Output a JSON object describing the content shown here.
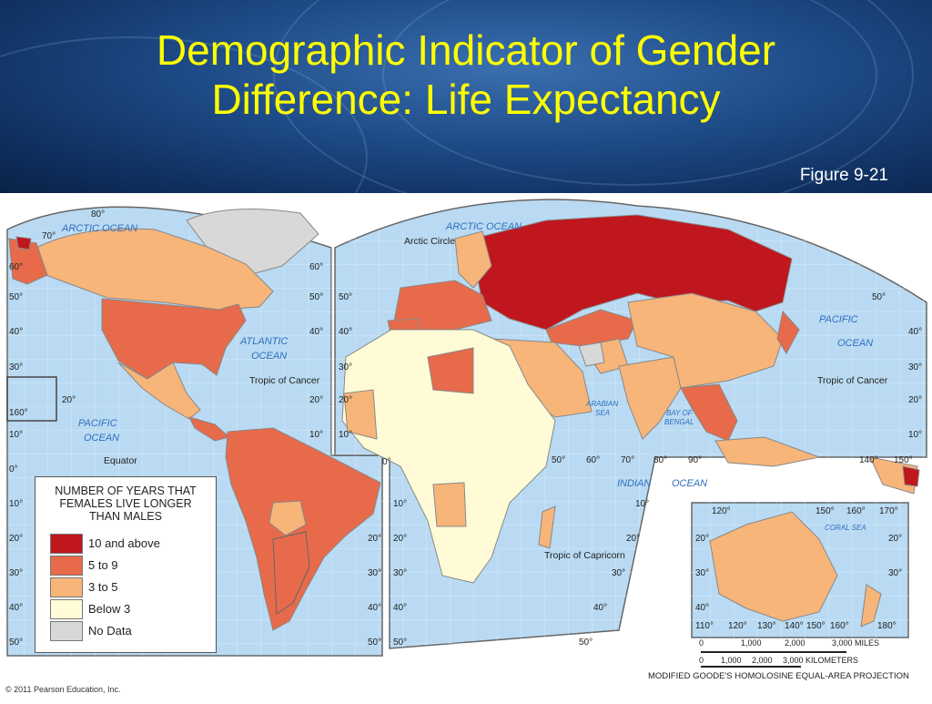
{
  "title": {
    "line1": "Demographic Indicator of Gender",
    "line2": "Difference: Life Expectancy"
  },
  "figure_label": "Figure 9-21",
  "legend": {
    "title_lines": [
      "NUMBER OF YEARS THAT",
      "FEMALES LIVE LONGER",
      "THAN MALES"
    ],
    "items": [
      {
        "label": "10 and above",
        "color": "#c0161e"
      },
      {
        "label": "5 to 9",
        "color": "#e76a4b"
      },
      {
        "label": "3 to 5",
        "color": "#f7b57a"
      },
      {
        "label": "Below 3",
        "color": "#fffbd6"
      },
      {
        "label": "No Data",
        "color": "#d8d8d8"
      }
    ]
  },
  "map_labels": {
    "arctic_ocean_left": "ARCTIC OCEAN",
    "arctic_ocean_right": "ARCTIC OCEAN",
    "arctic_circle": "Arctic Circle",
    "atlantic_ocean_1": "ATLANTIC",
    "atlantic_ocean_2": "OCEAN",
    "pacific_left_1": "PACIFIC",
    "pacific_left_2": "OCEAN",
    "pacific_right_1": "PACIFIC",
    "pacific_right_2": "OCEAN",
    "indian_ocean_1": "INDIAN",
    "indian_ocean_2": "OCEAN",
    "arabian_sea_1": "ARABIAN",
    "arabian_sea_2": "SEA",
    "bay_bengal_1": "BAY OF",
    "bay_bengal_2": "BENGAL",
    "coral_sea": "CORAL SEA",
    "tropic_cancer_left": "Tropic of Cancer",
    "tropic_cancer_right": "Tropic of Cancer",
    "tropic_capricorn": "Tropic of Capricorn",
    "equator": "Equator"
  },
  "lat_labels": {
    "l80": "80°",
    "l70": "70°",
    "l60": "60°",
    "l50": "50°",
    "l40": "40°",
    "l30": "30°",
    "l20": "20°",
    "l10": "10°",
    "l0": "0°",
    "l160": "160°"
  },
  "lon_labels": {
    "l50": "50°",
    "l60": "60°",
    "l70": "70°",
    "l80": "80°",
    "l90": "90°",
    "l140": "140°",
    "l150": "150°",
    "l0": "0°",
    "a120": "120°",
    "a150": "150°",
    "a160": "160°",
    "a170": "170°",
    "b110": "110°",
    "b120": "120°",
    "b130": "130°",
    "b140": "140°",
    "b150": "150°",
    "b160": "160°",
    "b180": "180°"
  },
  "scale": {
    "miles": [
      "0",
      "1,000",
      "2,000",
      "3,000 MILES"
    ],
    "km": [
      "0",
      "1,000",
      "2,000",
      "3,000 KILOMETERS"
    ]
  },
  "projection": "MODIFIED GOODE'S HOMOLOSINE EQUAL-AREA PROJECTION",
  "copyright": "© 2011 Pearson Education, Inc."
}
